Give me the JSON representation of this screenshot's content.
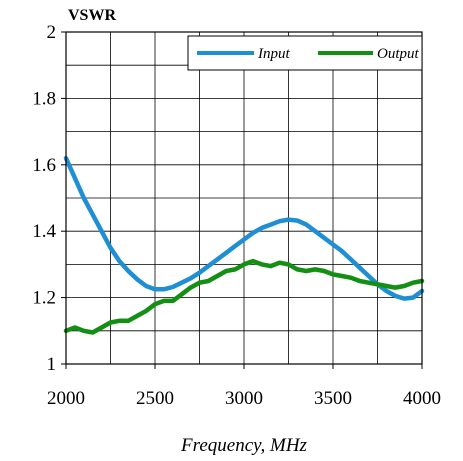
{
  "chart_data": {
    "type": "line",
    "ylabel": "VSWR",
    "xlabel": "Frequency, MHz",
    "xlim": [
      2000,
      4000
    ],
    "ylim": [
      1,
      2
    ],
    "x_ticks": [
      "2000",
      "2500",
      "3000",
      "3500",
      "4000"
    ],
    "y_ticks": [
      "1",
      "1.2",
      "1.4",
      "1.6",
      "1.8",
      "2"
    ],
    "grid": true,
    "legend_position": "top-right",
    "series": [
      {
        "name": "Input",
        "color": "#1f8fd3",
        "x": [
          2000,
          2050,
          2100,
          2150,
          2200,
          2250,
          2300,
          2350,
          2400,
          2450,
          2500,
          2550,
          2600,
          2650,
          2700,
          2750,
          2800,
          2850,
          2900,
          2950,
          3000,
          3050,
          3100,
          3150,
          3200,
          3250,
          3300,
          3350,
          3400,
          3450,
          3500,
          3550,
          3600,
          3650,
          3700,
          3750,
          3800,
          3850,
          3900,
          3950,
          4000
        ],
        "values": [
          1.62,
          1.56,
          1.5,
          1.45,
          1.4,
          1.35,
          1.31,
          1.28,
          1.255,
          1.235,
          1.225,
          1.225,
          1.232,
          1.245,
          1.258,
          1.275,
          1.295,
          1.315,
          1.335,
          1.355,
          1.375,
          1.395,
          1.41,
          1.42,
          1.43,
          1.435,
          1.432,
          1.42,
          1.4,
          1.38,
          1.36,
          1.34,
          1.315,
          1.29,
          1.265,
          1.24,
          1.22,
          1.205,
          1.197,
          1.2,
          1.22
        ]
      },
      {
        "name": "Output",
        "color": "#138f13",
        "x": [
          2000,
          2050,
          2100,
          2150,
          2200,
          2250,
          2300,
          2350,
          2400,
          2450,
          2500,
          2550,
          2600,
          2650,
          2700,
          2750,
          2800,
          2850,
          2900,
          2950,
          3000,
          3050,
          3100,
          3150,
          3200,
          3250,
          3300,
          3350,
          3400,
          3450,
          3500,
          3550,
          3600,
          3650,
          3700,
          3750,
          3800,
          3850,
          3900,
          3950,
          4000
        ],
        "values": [
          1.1,
          1.11,
          1.1,
          1.095,
          1.11,
          1.125,
          1.13,
          1.13,
          1.145,
          1.16,
          1.18,
          1.19,
          1.19,
          1.21,
          1.23,
          1.245,
          1.25,
          1.265,
          1.28,
          1.285,
          1.3,
          1.31,
          1.3,
          1.295,
          1.305,
          1.3,
          1.285,
          1.28,
          1.285,
          1.28,
          1.27,
          1.265,
          1.26,
          1.25,
          1.245,
          1.24,
          1.235,
          1.23,
          1.235,
          1.245,
          1.25
        ]
      }
    ]
  }
}
